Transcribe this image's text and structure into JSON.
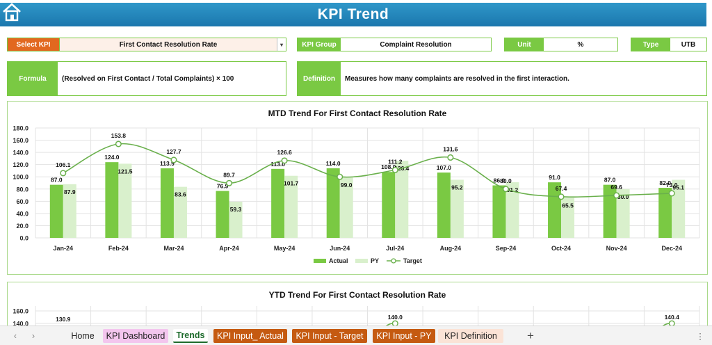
{
  "header": {
    "title": "KPI Trend"
  },
  "controls": {
    "select_kpi_label": "Select KPI",
    "select_kpi_value": "First Contact Resolution Rate",
    "kpi_group_label": "KPI Group",
    "kpi_group_value": "Complaint Resolution",
    "unit_label": "Unit",
    "unit_value": "%",
    "type_label": "Type",
    "type_value": "UTB"
  },
  "info": {
    "formula_label": "Formula",
    "formula_value": "(Resolved on First Contact / Total Complaints) × 100",
    "definition_label": "Definition",
    "definition_value": "Measures how many complaints are resolved in the first interaction."
  },
  "colors": {
    "actual": "#7ac943",
    "py": "#d9f0cc",
    "target": "#6ab04c",
    "header": "#2188bd",
    "select_kpi": "#e2681f"
  },
  "chart_data": [
    {
      "type": "bar",
      "title": "MTD Trend For First Contact Resolution Rate",
      "categories": [
        "Jan-24",
        "Feb-24",
        "Mar-24",
        "Apr-24",
        "May-24",
        "Jun-24",
        "Jul-24",
        "Aug-24",
        "Sep-24",
        "Oct-24",
        "Nov-24",
        "Dec-24"
      ],
      "series": [
        {
          "name": "Actual",
          "kind": "bar",
          "values": [
            87.0,
            124.0,
            113.9,
            76.9,
            113.0,
            114.0,
            108.0,
            107.0,
            86.0,
            91.0,
            87.0,
            82.0
          ],
          "labels": [
            "87.0",
            "124.0",
            "113.9",
            "76.9",
            "113.0",
            "114.0",
            "108.0",
            "107.0",
            "86.0",
            "91.0",
            "87.0",
            "82.0"
          ]
        },
        {
          "name": "PY",
          "kind": "bar",
          "values": [
            87.9,
            121.5,
            83.6,
            59.3,
            101.7,
            99.0,
            126.4,
            95.2,
            91.2,
            65.5,
            80.0,
            95.1
          ],
          "labels": [
            "87.9",
            "121.5",
            "83.6",
            "59.3",
            "101.7",
            "99.0",
            "126.4",
            "95.2",
            "91.2",
            "65.5",
            "80.0",
            "95.1"
          ]
        },
        {
          "name": "Target",
          "kind": "line",
          "values": [
            106.1,
            153.8,
            127.7,
            89.7,
            126.6,
            100.0,
            111.2,
            131.6,
            80.0,
            67.4,
            69.6,
            73.0
          ],
          "labels": [
            "106.1",
            "153.8",
            "127.7",
            "89.7",
            "126.6",
            "",
            "111.2",
            "131.6",
            "80.0",
            "67.4",
            "69.6",
            "73.0"
          ]
        }
      ],
      "yticks": [
        "0.0",
        "20.0",
        "40.0",
        "60.0",
        "80.0",
        "100.0",
        "120.0",
        "140.0",
        "160.0",
        "180.0"
      ],
      "ylim": [
        0,
        180
      ],
      "grid": true,
      "legend": "bottom"
    },
    {
      "type": "bar",
      "title": "YTD Trend For First Contact Resolution Rate",
      "yticks": [
        "140.0",
        "160.0"
      ],
      "visible_labels": [
        "130.9",
        "140.0",
        "140.4"
      ]
    }
  ],
  "tabs": [
    {
      "label": "Home"
    },
    {
      "label": "KPI Dashboard"
    },
    {
      "label": "Trends"
    },
    {
      "label": "KPI Input_ Actual"
    },
    {
      "label": "KPI Input - Target"
    },
    {
      "label": "KPI Input - PY"
    },
    {
      "label": "KPI Definition"
    }
  ],
  "add_sheet": "+"
}
